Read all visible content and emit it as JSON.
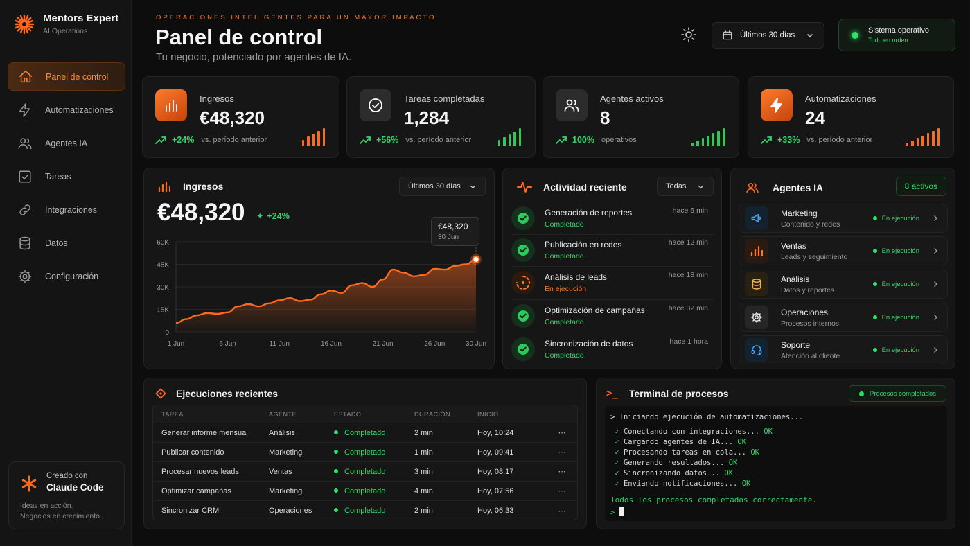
{
  "brand": {
    "title": "Mentors Expert",
    "subtitle": "AI Operations"
  },
  "nav": [
    {
      "label": "Panel de control",
      "icon": "home-icon",
      "active": true
    },
    {
      "label": "Automatizaciones",
      "icon": "lightning-icon"
    },
    {
      "label": "Agentes IA",
      "icon": "users-icon"
    },
    {
      "label": "Tareas",
      "icon": "checkbox-icon"
    },
    {
      "label": "Integraciones",
      "icon": "link-icon"
    },
    {
      "label": "Datos",
      "icon": "database-icon"
    },
    {
      "label": "Configuración",
      "icon": "gear-icon"
    }
  ],
  "credit": {
    "small": "Creado con",
    "big": "Claude Code",
    "line1": "Ideas en acción.",
    "line2": "Negocios en crecimiento."
  },
  "header": {
    "eyebrow": "OPERACIONES INTELIGENTES PARA UN MAYOR IMPACTO",
    "title": "Panel de control",
    "subtitle": "Tu negocio, potenciado por agentes de IA.",
    "date_range": "Últimos 30 días",
    "status_main": "Sistema operativo",
    "status_sub": "Todo en orden"
  },
  "kpis": [
    {
      "label": "Ingresos",
      "value": "€48,320",
      "trend": "+24%",
      "compare": "vs. período anterior",
      "icon": "bar-chart-icon",
      "tone": "orange",
      "bars": [
        0.35,
        0.55,
        0.7,
        0.85,
        1.0
      ],
      "bar_color": "#ff6a1f"
    },
    {
      "label": "Tareas completadas",
      "value": "1,284",
      "trend": "+56%",
      "compare": "vs. período anterior",
      "icon": "check-circle-icon",
      "tone": "gray",
      "bars": [
        0.35,
        0.5,
        0.65,
        0.8,
        1.0
      ],
      "bar_color": "#2ec85f"
    },
    {
      "label": "Agentes activos",
      "value": "8",
      "trend": "100%",
      "compare": "operativos",
      "icon": "users-icon",
      "tone": "gray",
      "bars": [
        0.2,
        0.32,
        0.45,
        0.58,
        0.72,
        0.86,
        1.0
      ],
      "bar_color": "#2ec85f"
    },
    {
      "label": "Automatizaciones",
      "value": "24",
      "trend": "+33%",
      "compare": "vs. período anterior",
      "icon": "lightning-icon",
      "tone": "orange",
      "bars": [
        0.2,
        0.32,
        0.45,
        0.58,
        0.72,
        0.86,
        1.0
      ],
      "bar_color": "#ff6a1f"
    }
  ],
  "revenue_card": {
    "title": "Ingresos",
    "range": "Últimos 30 días",
    "value": "€48,320",
    "trend": "+24%",
    "tooltip_value": "€48,320",
    "tooltip_date": "30 Jun"
  },
  "chart_data": {
    "type": "area",
    "title": "Ingresos",
    "x": [
      "1 Jun",
      "2 Jun",
      "3 Jun",
      "4 Jun",
      "5 Jun",
      "6 Jun",
      "7 Jun",
      "8 Jun",
      "9 Jun",
      "10 Jun",
      "11 Jun",
      "12 Jun",
      "13 Jun",
      "14 Jun",
      "15 Jun",
      "16 Jun",
      "17 Jun",
      "18 Jun",
      "19 Jun",
      "20 Jun",
      "21 Jun",
      "22 Jun",
      "23 Jun",
      "24 Jun",
      "25 Jun",
      "26 Jun",
      "27 Jun",
      "28 Jun",
      "29 Jun",
      "30 Jun"
    ],
    "values": [
      6000,
      8500,
      11000,
      12500,
      12000,
      13000,
      17000,
      18500,
      17000,
      19000,
      21000,
      22500,
      20500,
      21500,
      25000,
      27500,
      26000,
      31000,
      32500,
      30000,
      35000,
      41500,
      39500,
      37000,
      38000,
      42000,
      41500,
      44000,
      45000,
      48320
    ],
    "xticks": [
      "1 Jun",
      "6 Jun",
      "11 Jun",
      "16 Jun",
      "21 Jun",
      "26 Jun",
      "30 Jun"
    ],
    "yticks": [
      "0",
      "15K",
      "30K",
      "45K",
      "60K"
    ],
    "ylim": [
      0,
      60000
    ],
    "color": "#ff6a1f"
  },
  "activity": {
    "title": "Actividad reciente",
    "filter": "Todas",
    "items": [
      {
        "name": "Generación de reportes",
        "status": "Completado",
        "time": "hace 5 min",
        "done": true
      },
      {
        "name": "Publicación en redes",
        "status": "Completado",
        "time": "hace 12 min",
        "done": true
      },
      {
        "name": "Análisis de leads",
        "status": "En ejecución",
        "time": "hace 18 min",
        "done": false
      },
      {
        "name": "Optimización de campañas",
        "status": "Completado",
        "time": "hace 32 min",
        "done": true
      },
      {
        "name": "Sincronización de datos",
        "status": "Completado",
        "time": "hace 1 hora",
        "done": true
      }
    ]
  },
  "agents": {
    "title": "Agentes IA",
    "badge": "8 activos",
    "items": [
      {
        "name": "Marketing",
        "sub": "Contenido y redes",
        "state": "En ejecución",
        "icon": "megaphone-icon",
        "color": "#4aa8ff",
        "bg": "#14222f"
      },
      {
        "name": "Ventas",
        "sub": "Leads y seguimiento",
        "state": "En ejecución",
        "icon": "bar-chart-icon",
        "color": "#ff7a2a",
        "bg": "#2b1a10"
      },
      {
        "name": "Análisis",
        "sub": "Datos y reportes",
        "state": "En ejecución",
        "icon": "database-icon",
        "color": "#ffb14a",
        "bg": "#2a2010"
      },
      {
        "name": "Operaciones",
        "sub": "Procesos internos",
        "state": "En ejecución",
        "icon": "gear-icon",
        "color": "#e8e8e8",
        "bg": "#262626"
      },
      {
        "name": "Soporte",
        "sub": "Atención al cliente",
        "state": "En ejecución",
        "icon": "headset-icon",
        "color": "#4aa8ff",
        "bg": "#14222f"
      }
    ]
  },
  "runs": {
    "title": "Ejecuciones recientes",
    "headers": [
      "TAREA",
      "AGENTE",
      "ESTADO",
      "DURACIÓN",
      "INICIO"
    ],
    "rows": [
      {
        "task": "Generar informe mensual",
        "agent": "Análisis",
        "state": "Completado",
        "duration": "2 min",
        "start": "Hoy, 10:24"
      },
      {
        "task": "Publicar contenido",
        "agent": "Marketing",
        "state": "Completado",
        "duration": "1 min",
        "start": "Hoy, 09:41"
      },
      {
        "task": "Procesar nuevos leads",
        "agent": "Ventas",
        "state": "Completado",
        "duration": "3 min",
        "start": "Hoy, 08:17"
      },
      {
        "task": "Optimizar campañas",
        "agent": "Marketing",
        "state": "Completado",
        "duration": "4 min",
        "start": "Hoy, 07:56"
      },
      {
        "task": "Sincronizar CRM",
        "agent": "Operaciones",
        "state": "Completado",
        "duration": "2 min",
        "start": "Hoy, 06:33"
      }
    ]
  },
  "terminal": {
    "title": "Terminal de procesos",
    "badge": "Procesos completados",
    "first": "> Iniciando ejecución de automatizaciones...",
    "lines": [
      {
        "text": "Conectando con integraciones...",
        "ok": "OK"
      },
      {
        "text": "Cargando agentes de IA...",
        "ok": "OK"
      },
      {
        "text": "Procesando tareas en cola...",
        "ok": "OK"
      },
      {
        "text": "Generando resultados...",
        "ok": "OK"
      },
      {
        "text": "Sincronizando datos...",
        "ok": "OK"
      },
      {
        "text": "Enviando notificaciones...",
        "ok": "OK"
      }
    ],
    "final": "Todos los procesos completados correctamente.",
    "prompt": ">"
  }
}
